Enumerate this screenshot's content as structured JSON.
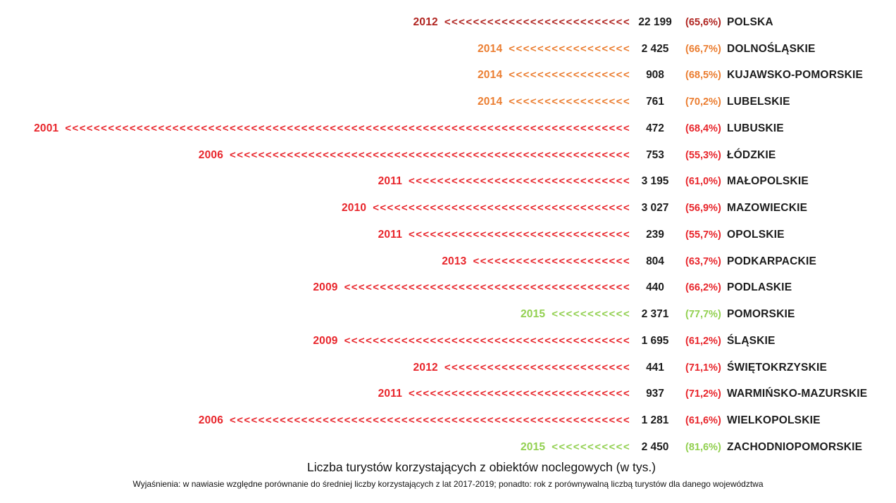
{
  "title": "Liczba turystów korzystających z obiektów noclegowych (w tys.)",
  "footnote": "Wyjaśnienia: w nawiasie względne porównanie do średniej liczby korzystających z lat 2017-2019; ponadto: rok z porównywalną liczbą turystów dla danego województwa",
  "colors": {
    "darkred": "#B02420",
    "red": "#E8252B",
    "orange": "#EB7D30",
    "green": "#92D050",
    "text": "#1C1C1C",
    "background": "#FFFFFF"
  },
  "rows": [
    {
      "region": "POLSKA",
      "year": "2012",
      "value": "22 199",
      "percent": "(65,6%)",
      "color": "darkred",
      "chevrons": 26
    },
    {
      "region": "DOLNOŚLĄSKIE",
      "year": "2014",
      "value": "2 425",
      "percent": "(66,7%)",
      "color": "orange",
      "chevrons": 17
    },
    {
      "region": "KUJAWSKO-POMORSKIE",
      "year": "2014",
      "value": "908",
      "percent": "(68,5%)",
      "color": "orange",
      "chevrons": 17
    },
    {
      "region": "LUBELSKIE",
      "year": "2014",
      "value": "761",
      "percent": "(70,2%)",
      "color": "orange",
      "chevrons": 17
    },
    {
      "region": "LUBUSKIE",
      "year": "2001",
      "value": "472",
      "percent": "(68,4%)",
      "color": "red",
      "chevrons": 79
    },
    {
      "region": "ŁÓDZKIE",
      "year": "2006",
      "value": "753",
      "percent": "(55,3%)",
      "color": "red",
      "chevrons": 56
    },
    {
      "region": "MAŁOPOLSKIE",
      "year": "2011",
      "value": "3 195",
      "percent": "(61,0%)",
      "color": "red",
      "chevrons": 31
    },
    {
      "region": "MAZOWIECKIE",
      "year": "2010",
      "value": "3 027",
      "percent": "(56,9%)",
      "color": "red",
      "chevrons": 36
    },
    {
      "region": "OPOLSKIE",
      "year": "2011",
      "value": "239",
      "percent": "(55,7%)",
      "color": "red",
      "chevrons": 31
    },
    {
      "region": "PODKARPACKIE",
      "year": "2013",
      "value": "804",
      "percent": "(63,7%)",
      "color": "red",
      "chevrons": 22
    },
    {
      "region": "PODLASKIE",
      "year": "2009",
      "value": "440",
      "percent": "(66,2%)",
      "color": "red",
      "chevrons": 40
    },
    {
      "region": "POMORSKIE",
      "year": "2015",
      "value": "2 371",
      "percent": "(77,7%)",
      "color": "green",
      "chevrons": 11
    },
    {
      "region": "ŚLĄSKIE",
      "year": "2009",
      "value": "1 695",
      "percent": "(61,2%)",
      "color": "red",
      "chevrons": 40
    },
    {
      "region": "ŚWIĘTOKRZYSKIE",
      "year": "2012",
      "value": "441",
      "percent": "(71,1%)",
      "color": "red",
      "chevrons": 26
    },
    {
      "region": "WARMIŃSKO-MAZURSKIE",
      "year": "2011",
      "value": "937",
      "percent": "(71,2%)",
      "color": "red",
      "chevrons": 31
    },
    {
      "region": "WIELKOPOLSKIE",
      "year": "2006",
      "value": "1 281",
      "percent": "(61,6%)",
      "color": "red",
      "chevrons": 56
    },
    {
      "region": "ZACHODNIOPOMORSKIE",
      "year": "2015",
      "value": "2 450",
      "percent": "(81,6%)",
      "color": "green",
      "chevrons": 11
    }
  ],
  "chart_data": {
    "type": "bar",
    "orientation": "horizontal",
    "title": "Liczba turystów korzystających z obiektów noclegowych (w tys.)",
    "annotation": "Wyjaśnienia: w nawiasie względne porównanie do średniej liczby korzystających z lat 2017-2019; ponadto: rok z porównywalną liczbą turystów dla danego województwa",
    "categories": [
      "POLSKA",
      "DOLNOŚLĄSKIE",
      "KUJAWSKO-POMORSKIE",
      "LUBELSKIE",
      "LUBUSKIE",
      "ŁÓDZKIE",
      "MAŁOPOLSKIE",
      "MAZOWIECKIE",
      "OPOLSKIE",
      "PODKARPACKIE",
      "PODLASKIE",
      "POMORSKIE",
      "ŚLĄSKIE",
      "ŚWIĘTOKRZYSKIE",
      "WARMIŃSKO-MAZURSKIE",
      "WIELKOPOLSKIE",
      "ZACHODNIOPOMORSKIE"
    ],
    "series": [
      {
        "name": "Liczba turystów (w tys.)",
        "values": [
          22199,
          2425,
          908,
          761,
          472,
          753,
          3195,
          3027,
          239,
          804,
          440,
          2371,
          1695,
          441,
          937,
          1281,
          2450
        ]
      },
      {
        "name": "Względne porównanie do średniej 2017-2019 (%)",
        "values": [
          65.6,
          66.7,
          68.5,
          70.2,
          68.4,
          55.3,
          61.0,
          56.9,
          55.7,
          63.7,
          66.2,
          77.7,
          61.2,
          71.1,
          71.2,
          61.6,
          81.6
        ]
      },
      {
        "name": "Rok z porównywalną liczbą turystów",
        "values": [
          2012,
          2014,
          2014,
          2014,
          2001,
          2006,
          2011,
          2010,
          2011,
          2013,
          2009,
          2015,
          2009,
          2012,
          2011,
          2006,
          2015
        ]
      }
    ],
    "bar_mark": "chevron-run",
    "bar_colors": [
      "#B02420",
      "#EB7D30",
      "#EB7D30",
      "#EB7D30",
      "#E8252B",
      "#E8252B",
      "#E8252B",
      "#E8252B",
      "#E8252B",
      "#E8252B",
      "#E8252B",
      "#92D050",
      "#E8252B",
      "#E8252B",
      "#E8252B",
      "#E8252B",
      "#92D050"
    ],
    "legend": "none",
    "grid": false
  }
}
